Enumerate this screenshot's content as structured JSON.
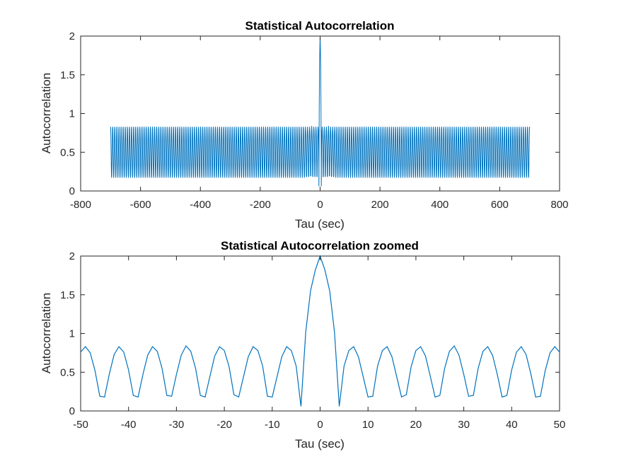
{
  "chart_data": [
    {
      "type": "line",
      "title": "Statistical Autocorrelation",
      "xlabel": "Tau (sec)",
      "ylabel": "Autocorrelation",
      "xlim": [
        -800,
        800
      ],
      "ylim": [
        0,
        2
      ],
      "xticks": [
        "-800",
        "-600",
        "-400",
        "-200",
        "0",
        "200",
        "400",
        "600",
        "800"
      ],
      "yticks": [
        "0",
        "0.5",
        "1",
        "1.5",
        "2"
      ],
      "grid": false,
      "line_color": "#0072BD",
      "series": [
        {
          "x_range": [
            -700,
            700
          ],
          "description_values": {
            "peak": {
              "x": 0,
              "y": 2
            },
            "oscillation_period_sec": 7,
            "oscillation_max": 0.83,
            "oscillation_min": 0.17,
            "minimum_near_zero": 0.06,
            "end_values": 0.75
          }
        }
      ]
    },
    {
      "type": "line",
      "title": "Statistical Autocorrelation zoomed",
      "xlabel": "Tau (sec)",
      "ylabel": "Autocorrelation",
      "xlim": [
        -50,
        50
      ],
      "ylim": [
        0,
        2
      ],
      "xticks": [
        "-50",
        "-40",
        "-30",
        "-20",
        "-10",
        "0",
        "10",
        "20",
        "30",
        "40",
        "50"
      ],
      "yticks": [
        "0",
        "0.5",
        "1",
        "1.5",
        "2"
      ],
      "grid": false,
      "line_color": "#0072BD",
      "series": [
        {
          "x": [
            -50,
            -49,
            -48,
            -47,
            -46,
            -45,
            -44,
            -43,
            -42,
            -41,
            -40,
            -39,
            -38,
            -37,
            -36,
            -35,
            -34,
            -33,
            -32,
            -31,
            -30,
            -29,
            -28,
            -27,
            -26,
            -25,
            -24,
            -23,
            -22,
            -21,
            -20,
            -19,
            -18,
            -17,
            -16,
            -15,
            -14,
            -13,
            -12,
            -11,
            -10,
            -9,
            -8,
            -7,
            -6,
            -5,
            -4,
            -3,
            -2,
            -1,
            0,
            1,
            2,
            3,
            4,
            5,
            6,
            7,
            8,
            9,
            10,
            11,
            12,
            13,
            14,
            15,
            16,
            17,
            18,
            19,
            20,
            21,
            22,
            23,
            24,
            25,
            26,
            27,
            28,
            29,
            30,
            31,
            32,
            33,
            34,
            35,
            36,
            37,
            38,
            39,
            40,
            41,
            42,
            43,
            44,
            45,
            46,
            47,
            48,
            49,
            50
          ],
          "y": [
            0.76,
            0.83,
            0.75,
            0.52,
            0.19,
            0.18,
            0.48,
            0.73,
            0.83,
            0.76,
            0.53,
            0.2,
            0.18,
            0.47,
            0.72,
            0.83,
            0.77,
            0.55,
            0.2,
            0.19,
            0.47,
            0.72,
            0.84,
            0.77,
            0.55,
            0.2,
            0.18,
            0.45,
            0.71,
            0.83,
            0.78,
            0.57,
            0.21,
            0.18,
            0.44,
            0.7,
            0.83,
            0.78,
            0.58,
            0.19,
            0.18,
            0.44,
            0.7,
            0.83,
            0.78,
            0.58,
            0.06,
            1.02,
            1.55,
            1.82,
            2.0,
            1.82,
            1.55,
            1.02,
            0.06,
            0.58,
            0.78,
            0.83,
            0.7,
            0.44,
            0.18,
            0.19,
            0.58,
            0.78,
            0.83,
            0.7,
            0.44,
            0.18,
            0.21,
            0.57,
            0.78,
            0.83,
            0.71,
            0.45,
            0.18,
            0.2,
            0.55,
            0.77,
            0.84,
            0.72,
            0.47,
            0.19,
            0.2,
            0.55,
            0.77,
            0.83,
            0.72,
            0.47,
            0.18,
            0.2,
            0.53,
            0.76,
            0.83,
            0.73,
            0.48,
            0.18,
            0.19,
            0.52,
            0.75,
            0.83,
            0.76
          ]
        }
      ]
    }
  ]
}
